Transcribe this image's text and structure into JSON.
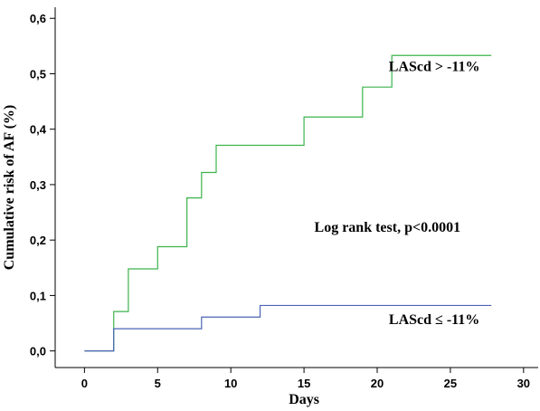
{
  "chart_data": {
    "type": "line",
    "step": true,
    "xlabel": "Days",
    "ylabel": "Cumulative risk of AF (%)",
    "xlim": [
      -2,
      31
    ],
    "ylim": [
      -0.03,
      0.62
    ],
    "xticks": [
      0,
      5,
      10,
      15,
      20,
      25,
      30
    ],
    "xtick_labels": [
      "0",
      "5",
      "10",
      "15",
      "20",
      "25",
      "30"
    ],
    "yticks": [
      0.0,
      0.1,
      0.2,
      0.3,
      0.4,
      0.5,
      0.6
    ],
    "ytick_labels": [
      "0,0",
      "0,1",
      "0,2",
      "0,3",
      "0,4",
      "0,5",
      "0,6"
    ],
    "grid": false,
    "series": [
      {
        "name": "LAScd > -11%",
        "color": "#3cb44b",
        "x": [
          0,
          2,
          3,
          5,
          7,
          8,
          9,
          15,
          19,
          21,
          27.8
        ],
        "y": [
          0.0,
          0.071,
          0.148,
          0.188,
          0.276,
          0.322,
          0.371,
          0.422,
          0.476,
          0.533,
          0.533
        ]
      },
      {
        "name": "LAScd ≤ -11%",
        "color": "#4a64b4",
        "x": [
          0,
          2,
          8,
          12,
          27.8
        ],
        "y": [
          0.0,
          0.04,
          0.061,
          0.082,
          0.082
        ]
      }
    ],
    "annotations": [
      {
        "text": "Log rank test, p<0.0001",
        "x": 20.7,
        "y": 0.215
      }
    ],
    "series_labels": [
      {
        "text": "LAScd > -11%",
        "x": 23.9,
        "y": 0.505
      },
      {
        "text": "LAScd ≤ -11%",
        "x": 23.9,
        "y": 0.048
      }
    ]
  }
}
